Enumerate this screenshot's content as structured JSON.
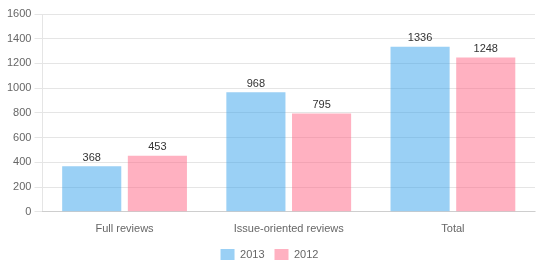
{
  "chart_data": {
    "type": "bar",
    "categories": [
      "Full reviews",
      "Issue-oriented reviews",
      "Total"
    ],
    "series": [
      {
        "name": "2013",
        "values": [
          368,
          968,
          1336
        ]
      },
      {
        "name": "2012",
        "values": [
          453,
          795,
          1248
        ]
      }
    ],
    "ylim": [
      0,
      1600
    ],
    "yticks": [
      0,
      200,
      400,
      600,
      800,
      1000,
      1200,
      1400,
      1600
    ],
    "grid": true,
    "legend": "bottom",
    "data_labels": true
  }
}
